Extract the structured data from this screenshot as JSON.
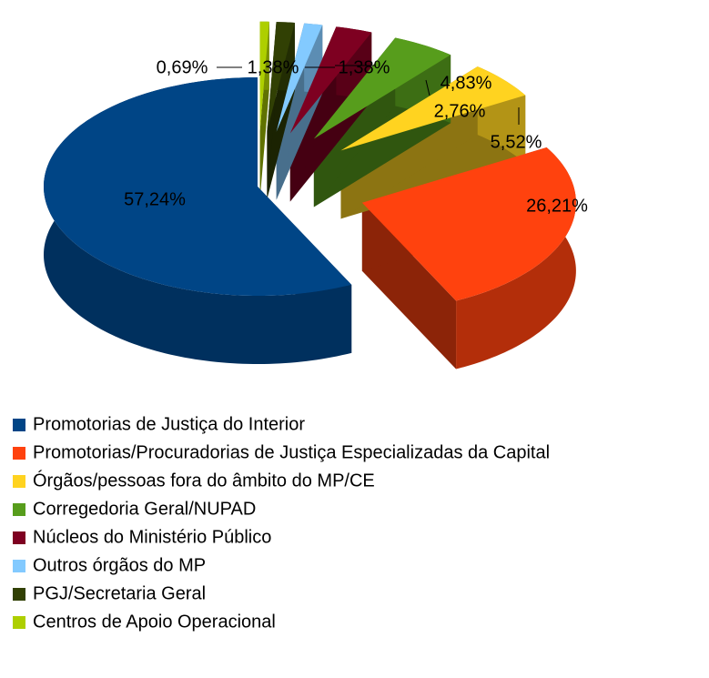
{
  "chart_data": {
    "type": "pie",
    "categories": [
      "Promotorias de Justiça do Interior",
      "Promotorias/Procuradorias de Justiça Especializadas da Capital",
      "Órgãos/pessoas fora do âmbito do MP/CE",
      "Corregedoria Geral/NUPAD",
      "Núcleos do Ministério Público",
      "Outros órgãos do MP",
      "PGJ/Secretaria Geral",
      "Centros de Apoio Operacional"
    ],
    "values": [
      57.24,
      26.21,
      5.52,
      4.83,
      2.76,
      1.38,
      1.38,
      0.69
    ],
    "value_labels": [
      "57,24%",
      "26,21%",
      "5,52%",
      "4,83%",
      "2,76%",
      "1,38%",
      "1,38%",
      "0,69%"
    ],
    "colors": [
      "#004586",
      "#ff420e",
      "#ffd320",
      "#579d1c",
      "#7e0021",
      "#83caff",
      "#314004",
      "#aecf00"
    ],
    "legend": "bottom"
  }
}
